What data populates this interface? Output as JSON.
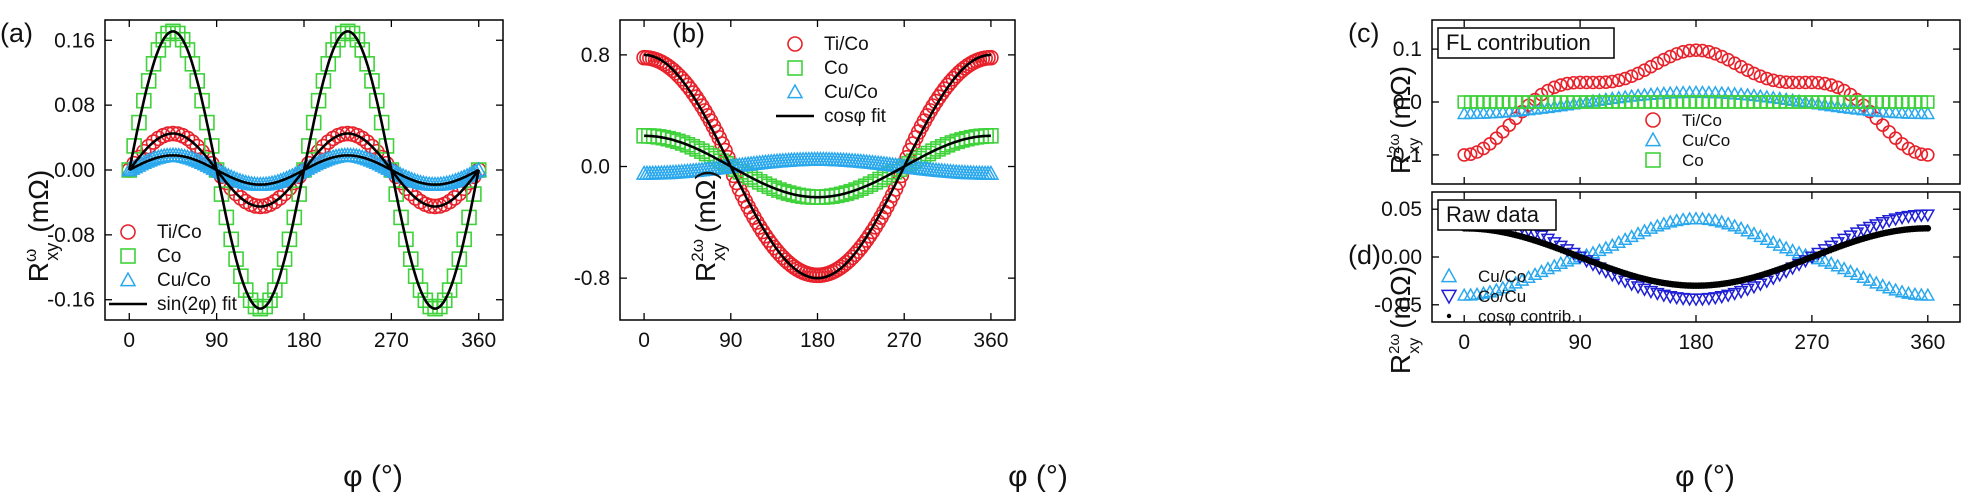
{
  "figure": {
    "panels": [
      "(a)",
      "(b)",
      "(c)",
      "(d)"
    ]
  },
  "colors": {
    "red": "#e8212a",
    "green": "#3fd23a",
    "lightblue": "#2aa8ee",
    "darkblue": "#1f1fd6",
    "black": "#000000"
  },
  "icons": {
    "circle": "circle-marker-icon",
    "square": "square-marker-icon",
    "triangle": "triangle-marker-icon",
    "triangle_down": "triangle-down-marker-icon",
    "line": "line-icon",
    "dot": "dot-marker-icon"
  },
  "chart_data": [
    {
      "id": "a",
      "type": "scatter",
      "panel_label": "(a)",
      "xlabel": "φ (°)",
      "ylabel_main": "R",
      "ylabel_sub": "xy",
      "ylabel_sup": "ω",
      "ylabel_unit": "(mΩ)",
      "xlim": [
        -25,
        385
      ],
      "ylim": [
        -0.185,
        0.185
      ],
      "xticks": [
        0,
        90,
        180,
        270,
        360
      ],
      "xtick_labels": [
        "0",
        "90",
        "180",
        "270",
        "360"
      ],
      "yticks": [
        -0.16,
        -0.08,
        0.0,
        0.08,
        0.16
      ],
      "ytick_labels": [
        "-0.16",
        "-0.08",
        "0.00",
        "0.08",
        "0.16"
      ],
      "legend_position": "bottom-left",
      "series": [
        {
          "name": "Ti/Co",
          "marker": "circle",
          "color": "#e8212a",
          "func": "sin2",
          "amp": 0.045,
          "step": 5
        },
        {
          "name": "Co",
          "marker": "square",
          "color": "#3fd23a",
          "func": "sin2",
          "amp": 0.171,
          "step": 5
        },
        {
          "name": "Cu/Co",
          "marker": "triangle",
          "color": "#2aa8ee",
          "func": "sin2",
          "amp": 0.018,
          "step": 3
        },
        {
          "name": "sin(2φ) fit",
          "marker": "line",
          "color": "#000000",
          "func": "sin2",
          "amp": [
            0.171,
            0.045,
            0.018
          ]
        }
      ]
    },
    {
      "id": "b",
      "type": "scatter",
      "panel_label": "(b)",
      "xlabel": "φ (°)",
      "ylabel_main": "R",
      "ylabel_sub": "xy",
      "ylabel_sup": "2ω",
      "ylabel_unit": "(mΩ)",
      "xlim": [
        -25,
        385
      ],
      "ylim": [
        -1.1,
        1.05
      ],
      "xticks": [
        0,
        90,
        180,
        270,
        360
      ],
      "xtick_labels": [
        "0",
        "90",
        "180",
        "270",
        "360"
      ],
      "yticks": [
        -0.8,
        0.0,
        0.8
      ],
      "ytick_labels": [
        "-0.8",
        "0.0",
        "0.8"
      ],
      "legend_position": "top-right",
      "series": [
        {
          "name": "Ti/Co",
          "marker": "circle",
          "color": "#e8212a",
          "func": "cos_flat",
          "amp": 0.78,
          "step": 3
        },
        {
          "name": "Co",
          "marker": "square",
          "color": "#3fd23a",
          "func": "cos",
          "amp": 0.22,
          "step": 5
        },
        {
          "name": "Cu/Co",
          "marker": "triangle",
          "color": "#2aa8ee",
          "func": "cos",
          "amp": -0.05,
          "step": 3
        },
        {
          "name": "cosφ fit",
          "marker": "line",
          "color": "#000000",
          "func": "cos",
          "amp": [
            0.8,
            0.22
          ]
        }
      ]
    },
    {
      "id": "c",
      "type": "scatter",
      "panel_label": "(c)",
      "xlabel": "",
      "ylabel_main": "R",
      "ylabel_sub": "xy",
      "ylabel_sup": "2ω",
      "ylabel_unit": "(mΩ)",
      "box_title": "FL contribution",
      "xlim": [
        -25,
        385
      ],
      "ylim": [
        -0.155,
        0.155
      ],
      "xticks": [
        0,
        90,
        180,
        270,
        360
      ],
      "yticks": [
        -0.1,
        0.0,
        0.1
      ],
      "ytick_labels": [
        "-0.1",
        "0.0",
        "0.1"
      ],
      "legend_position": "bottom-center",
      "series": [
        {
          "name": "Ti/Co",
          "marker": "circle",
          "color": "#e8212a",
          "func": "fl_ti",
          "step": 5
        },
        {
          "name": "Cu/Co",
          "marker": "triangle",
          "color": "#2aa8ee",
          "func": "fl_cu",
          "step": 5
        },
        {
          "name": "Co",
          "marker": "square",
          "color": "#3fd23a",
          "func": "zero",
          "step": 5
        }
      ]
    },
    {
      "id": "d",
      "type": "scatter",
      "panel_label": "(d)",
      "xlabel": "φ (°)",
      "ylabel_main": "R",
      "ylabel_sub": "xy",
      "ylabel_sup": "2ω",
      "ylabel_unit": "(mΩ)",
      "box_title": "Raw data",
      "xlim": [
        -25,
        385
      ],
      "ylim": [
        -0.068,
        0.068
      ],
      "xticks": [
        0,
        90,
        180,
        270,
        360
      ],
      "xtick_labels": [
        "0",
        "90",
        "180",
        "270",
        "360"
      ],
      "yticks": [
        -0.05,
        0.0,
        0.05
      ],
      "ytick_labels": [
        "-0.05",
        "0.00",
        "0.05"
      ],
      "legend_position": "bottom-left",
      "series": [
        {
          "name": "Cu/Co",
          "marker": "triangle",
          "color": "#2aa8ee",
          "func": "raw_cu",
          "step": 5
        },
        {
          "name": "Co/Cu",
          "marker": "triangle_down",
          "color": "#1f1fd6",
          "func": "raw_cocu",
          "step": 5
        },
        {
          "name": "cosφ contrib.",
          "marker": "dot",
          "color": "#000000",
          "func": "cos",
          "amp": 0.03,
          "step": 2
        }
      ]
    }
  ]
}
